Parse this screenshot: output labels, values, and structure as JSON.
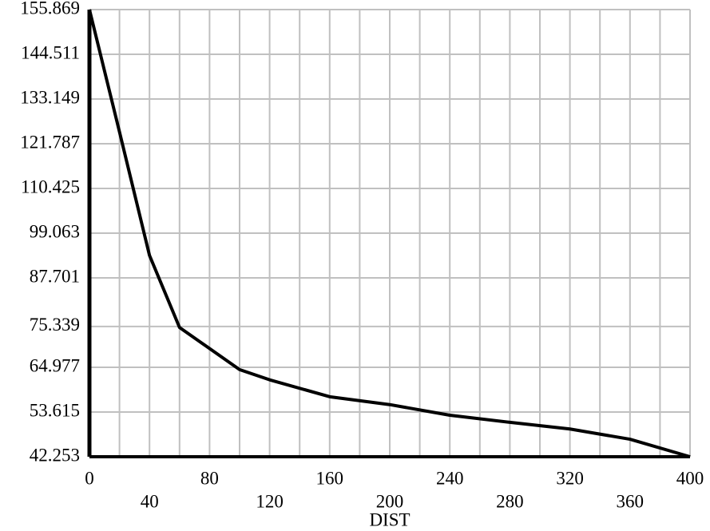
{
  "chart_data": {
    "type": "line",
    "x_label": "DIST",
    "x": [
      0,
      20,
      40,
      60,
      100,
      120,
      160,
      200,
      240,
      280,
      320,
      360,
      400
    ],
    "series": [
      {
        "color": "#000000",
        "values": [
          155.869,
          124.8,
          93.4,
          75.1,
          64.4,
          61.8,
          57.5,
          55.5,
          52.8,
          51.0,
          49.3,
          46.7,
          42.253
        ]
      }
    ],
    "xlim": [
      0,
      400
    ],
    "xticks": [
      0,
      40,
      80,
      120,
      160,
      200,
      240,
      280,
      320,
      360,
      400
    ],
    "x_minor_ticks": [
      20,
      60,
      100,
      140,
      180,
      220,
      260,
      300,
      340,
      380
    ],
    "ylim": [
      42.253,
      155.869
    ],
    "yticks": [
      42.253,
      53.615,
      64.977,
      75.339,
      87.701,
      99.063,
      110.425,
      121.787,
      133.149,
      144.511,
      155.869
    ],
    "grid": true
  }
}
